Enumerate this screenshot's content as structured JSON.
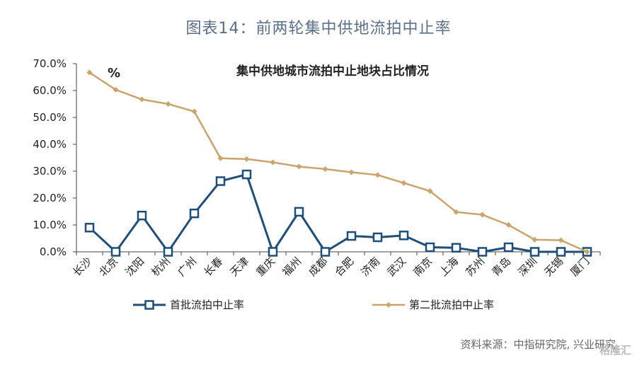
{
  "header": {
    "title": "图表14：前两轮集中供地流拍中止率"
  },
  "footer": {
    "source": "资料来源：中指研究院, 兴业研究",
    "watermark": "格隆汇"
  },
  "chart_data": {
    "type": "line",
    "title": "集中供地城市流拍中止地块占比情况",
    "unit_label": "%",
    "categories": [
      "长沙",
      "北京",
      "沈阳",
      "杭州",
      "广州",
      "长春",
      "天津",
      "重庆",
      "福州",
      "成都",
      "合肥",
      "济南",
      "武汉",
      "南京",
      "上海",
      "苏州",
      "青岛",
      "深圳",
      "无锡",
      "厦门"
    ],
    "y_ticks": [
      "0.0%",
      "10.0%",
      "20.0%",
      "30.0%",
      "40.0%",
      "50.0%",
      "60.0%",
      "70.0%"
    ],
    "ylim": [
      0,
      70
    ],
    "legend_position": "bottom",
    "grid": false,
    "series": [
      {
        "name": "首批流拍中止率",
        "color": "#1f4e79",
        "marker": "square",
        "values": [
          9.0,
          0.0,
          13.5,
          0.0,
          14.3,
          26.3,
          28.8,
          0.0,
          14.9,
          0.0,
          5.9,
          5.4,
          6.1,
          1.7,
          1.5,
          0.0,
          1.7,
          0.0,
          0.0,
          0.0
        ]
      },
      {
        "name": "第二批流拍中止率",
        "color": "#c9a46c",
        "marker": "diamond",
        "values": [
          66.7,
          60.3,
          56.7,
          55.0,
          52.2,
          34.8,
          34.5,
          33.3,
          31.7,
          30.8,
          29.6,
          28.6,
          25.6,
          22.6,
          14.8,
          13.8,
          10.0,
          4.5,
          4.3,
          0.0
        ]
      }
    ]
  }
}
